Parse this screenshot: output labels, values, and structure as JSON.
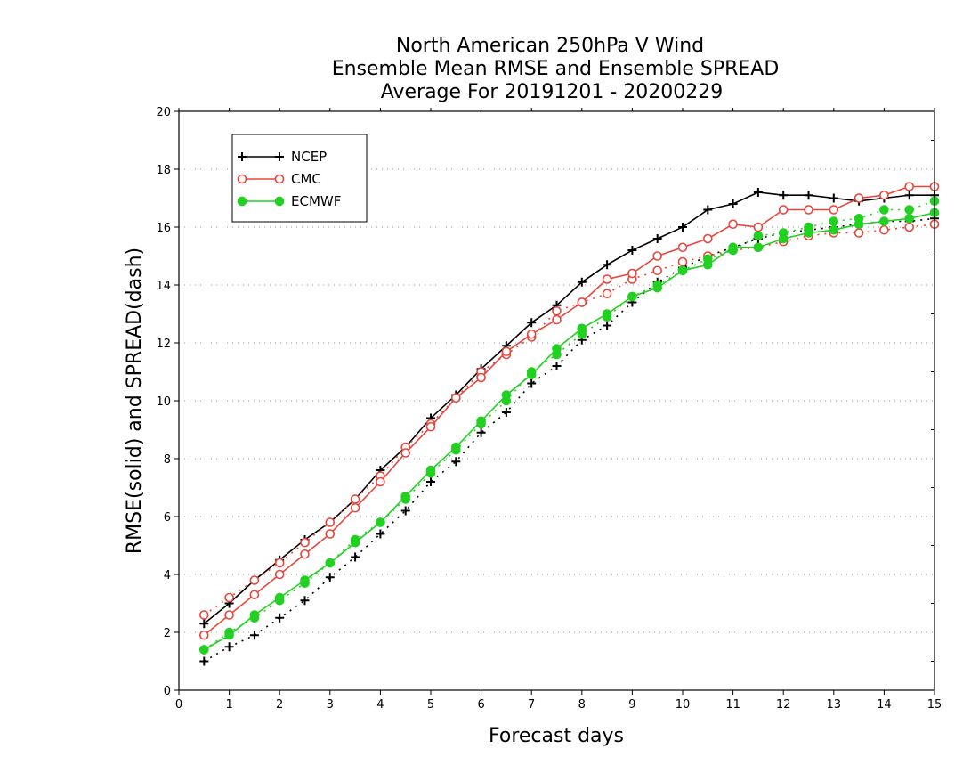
{
  "chart_data": {
    "type": "line",
    "title": [
      "North American 250hPa V Wind",
      "Ensemble Mean RMSE and Ensemble SPREAD",
      "Average For 20191201 - 20200229"
    ],
    "xlabel": "Forecast days",
    "ylabel": "RMSE(solid) and SPREAD(dash)",
    "xlim": [
      0,
      15
    ],
    "ylim": [
      0,
      20
    ],
    "xticks": [
      0,
      1,
      2,
      3,
      4,
      5,
      6,
      7,
      8,
      9,
      10,
      11,
      12,
      13,
      14,
      15
    ],
    "yticks": [
      0,
      2,
      4,
      6,
      8,
      10,
      12,
      14,
      16,
      18,
      20
    ],
    "grid": true,
    "legend_position": "top-left",
    "x": [
      0.5,
      1,
      1.5,
      2,
      2.5,
      3,
      3.5,
      4,
      4.5,
      5,
      5.5,
      6,
      6.5,
      7,
      7.5,
      8,
      8.5,
      9,
      9.5,
      10,
      10.5,
      11,
      11.5,
      12,
      12.5,
      13,
      13.5,
      14,
      14.5,
      15
    ],
    "series": [
      {
        "name": "NCEP",
        "color": "#000000",
        "marker": "plus",
        "rmse": [
          2.3,
          3.0,
          3.8,
          4.5,
          5.2,
          5.8,
          6.6,
          7.6,
          8.4,
          9.4,
          10.2,
          11.1,
          11.9,
          12.7,
          13.3,
          14.1,
          14.7,
          15.2,
          15.6,
          16.0,
          16.6,
          16.8,
          17.2,
          17.1,
          17.1,
          17.0,
          16.9,
          17.0,
          17.1,
          17.1
        ],
        "spread": [
          1.0,
          1.5,
          1.9,
          2.5,
          3.1,
          3.9,
          4.6,
          5.4,
          6.2,
          7.2,
          7.9,
          8.9,
          9.6,
          10.6,
          11.2,
          12.1,
          12.6,
          13.4,
          14.1,
          14.6,
          15.0,
          15.3,
          15.6,
          15.8,
          15.9,
          16.0,
          16.1,
          16.2,
          16.2,
          16.3
        ]
      },
      {
        "name": "CMC",
        "color": "#e8463c",
        "marker": "open-circle",
        "rmse": [
          1.9,
          2.6,
          3.3,
          4.0,
          4.7,
          5.4,
          6.3,
          7.2,
          8.2,
          9.1,
          10.1,
          10.8,
          11.7,
          12.3,
          12.8,
          13.4,
          14.2,
          14.4,
          15.0,
          15.3,
          15.6,
          16.1,
          16.0,
          16.6,
          16.6,
          16.6,
          17.0,
          17.1,
          17.4,
          17.4
        ],
        "spread": [
          2.6,
          3.2,
          3.8,
          4.4,
          5.1,
          5.8,
          6.6,
          7.4,
          8.4,
          9.2,
          10.1,
          11.0,
          11.6,
          12.2,
          13.1,
          13.4,
          13.7,
          14.2,
          14.5,
          14.8,
          15.0,
          15.2,
          15.3,
          15.5,
          15.7,
          15.8,
          15.8,
          15.9,
          16.0,
          16.1
        ]
      },
      {
        "name": "ECMWF",
        "color": "#22d022",
        "marker": "filled-circle",
        "rmse": [
          1.4,
          1.9,
          2.6,
          3.2,
          3.8,
          4.4,
          5.1,
          5.8,
          6.7,
          7.6,
          8.4,
          9.3,
          10.2,
          10.9,
          11.8,
          12.5,
          13.0,
          13.6,
          13.9,
          14.5,
          14.7,
          15.3,
          15.3,
          15.6,
          15.8,
          15.9,
          16.1,
          16.2,
          16.3,
          16.5
        ],
        "spread": [
          1.4,
          2.0,
          2.5,
          3.1,
          3.7,
          4.4,
          5.2,
          5.8,
          6.6,
          7.5,
          8.3,
          9.2,
          10.0,
          11.0,
          11.6,
          12.3,
          12.9,
          13.6,
          14.0,
          14.5,
          14.9,
          15.2,
          15.7,
          15.8,
          16.0,
          16.2,
          16.3,
          16.6,
          16.6,
          16.9
        ]
      }
    ]
  }
}
